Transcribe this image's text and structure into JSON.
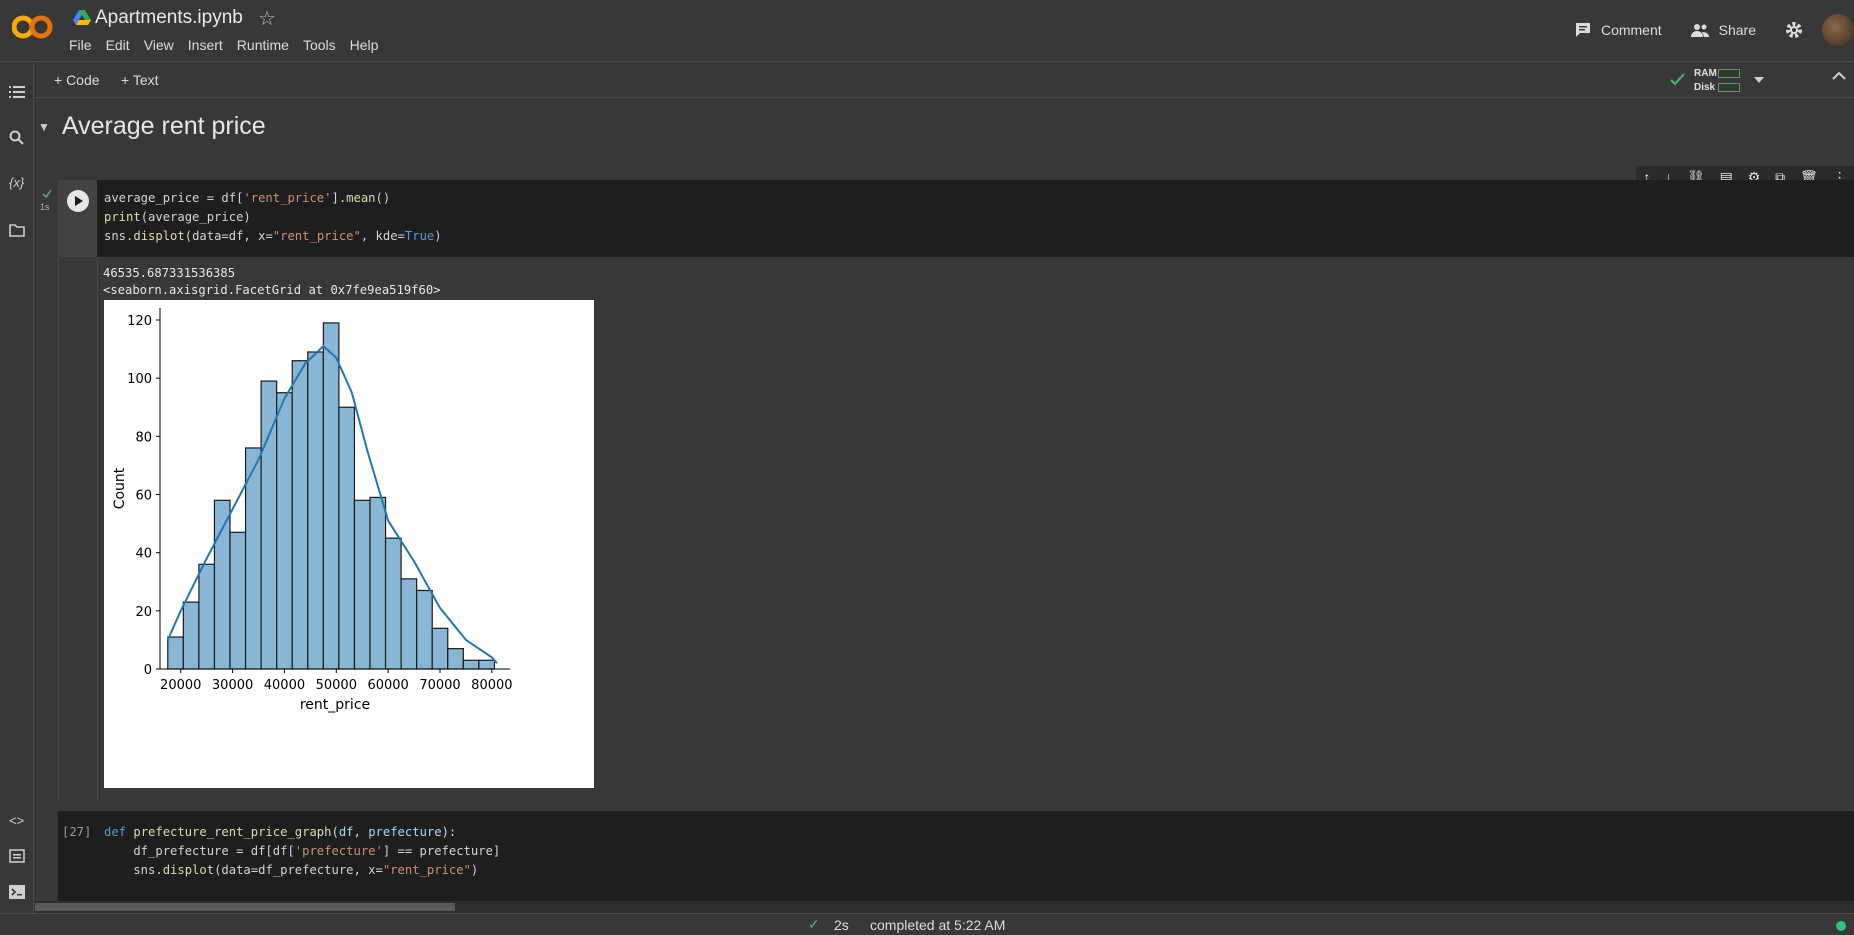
{
  "header": {
    "notebook_title": "Apartments.ipynb",
    "menu": [
      "File",
      "Edit",
      "View",
      "Insert",
      "Runtime",
      "Tools",
      "Help"
    ],
    "comment_label": "Comment",
    "share_label": "Share"
  },
  "toolbar": {
    "add_code_label": "+ Code",
    "add_text_label": "+ Text",
    "ram_label": "RAM",
    "disk_label": "Disk"
  },
  "section": {
    "title": "Average rent price"
  },
  "cell1": {
    "exec_time": "1s",
    "output_line1": "46535.687331536385",
    "output_line2": "<seaborn.axisgrid.FacetGrid at 0x7fe9ea519f60>"
  },
  "cell2": {
    "exec_count": "[27]"
  },
  "status": {
    "duration": "2s",
    "completed": "completed at 5:22 AM"
  },
  "chart_data": {
    "type": "bar",
    "title": "",
    "xlabel": "rent_price",
    "ylabel": "Count",
    "xlim": [
      16000,
      83500
    ],
    "ylim": [
      0,
      120
    ],
    "xticks": [
      20000,
      30000,
      40000,
      50000,
      60000,
      70000,
      80000
    ],
    "yticks": [
      0,
      20,
      40,
      60,
      80,
      100,
      120
    ],
    "bin_edges": [
      17500,
      20500,
      23500,
      26500,
      29500,
      32500,
      35500,
      38500,
      41500,
      44500,
      47500,
      50500,
      53500,
      56500,
      59500,
      62500,
      65500,
      68500,
      71500,
      74500,
      77500,
      80500
    ],
    "values": [
      11,
      23,
      36,
      58,
      47,
      76,
      99,
      95,
      106,
      109,
      119,
      90,
      58,
      59,
      45,
      31,
      27,
      14,
      7,
      3,
      3
    ],
    "kde": {
      "x": [
        17500,
        20000,
        25000,
        30000,
        35000,
        40000,
        44000,
        47500,
        50000,
        53000,
        56000,
        60000,
        65000,
        70000,
        75000,
        80000,
        81000
      ],
      "y": [
        10,
        20,
        38,
        55,
        72,
        93,
        105,
        111,
        107,
        95,
        75,
        51,
        37,
        21,
        10,
        4,
        2
      ]
    },
    "bar_color": "#8ab6d6",
    "kde_color": "#1f77b4"
  }
}
